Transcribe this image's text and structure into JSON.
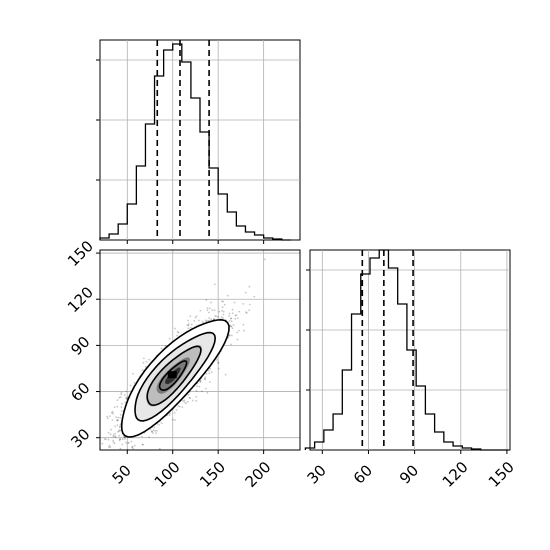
{
  "chart_data": [
    {
      "type": "histogram",
      "panel": "marginal-x",
      "x": [
        25,
        35,
        45,
        55,
        65,
        75,
        85,
        95,
        105,
        115,
        125,
        135,
        145,
        155,
        165,
        175,
        185,
        195,
        205,
        215,
        225
      ],
      "counts": [
        0.01,
        0.03,
        0.08,
        0.18,
        0.37,
        0.58,
        0.82,
        0.95,
        0.98,
        0.89,
        0.71,
        0.54,
        0.36,
        0.23,
        0.14,
        0.07,
        0.04,
        0.025,
        0.01,
        0.005,
        0.0
      ],
      "bin_width": 10,
      "quantile_lines": [
        83,
        108,
        140
      ],
      "xlim": [
        20,
        240
      ],
      "ylim": [
        0,
        1.0
      ],
      "ytick_values": [
        0.3,
        0.6,
        0.9
      ],
      "grid": true
    },
    {
      "type": "scatter",
      "panel": "joint",
      "point_density": "gaussian cloud with contour levels",
      "center": [
        100,
        70
      ],
      "spread": [
        28,
        18
      ],
      "correlation": 0.82,
      "contour_levels_sigma": [
        0.5,
        1.0,
        1.5,
        2.0
      ],
      "xlim": [
        20,
        240
      ],
      "ylim": [
        22,
        152
      ],
      "xticks": [
        "50",
        "100",
        "150",
        "200"
      ],
      "yticks": [
        "30",
        "60",
        "90",
        "120",
        "150"
      ],
      "grid": true
    },
    {
      "type": "histogram",
      "panel": "marginal-y",
      "x": [
        22,
        28,
        34,
        40,
        46,
        52,
        58,
        64,
        70,
        76,
        82,
        88,
        94,
        100,
        106,
        112,
        118,
        124,
        130,
        136,
        142,
        148
      ],
      "counts": [
        0.01,
        0.04,
        0.1,
        0.18,
        0.4,
        0.68,
        0.88,
        0.96,
        1.0,
        0.91,
        0.73,
        0.5,
        0.32,
        0.18,
        0.09,
        0.04,
        0.02,
        0.01,
        0.005,
        0.0,
        0.0,
        0.0
      ],
      "bin_width": 6,
      "quantile_lines": [
        56,
        70,
        89
      ],
      "xlim": [
        22,
        152
      ],
      "ylim": [
        0,
        1.0
      ],
      "ytick_values": [
        0.3,
        0.6,
        0.9
      ],
      "xticks": [
        "30",
        "60",
        "90",
        "120",
        "150"
      ],
      "grid": true
    }
  ]
}
